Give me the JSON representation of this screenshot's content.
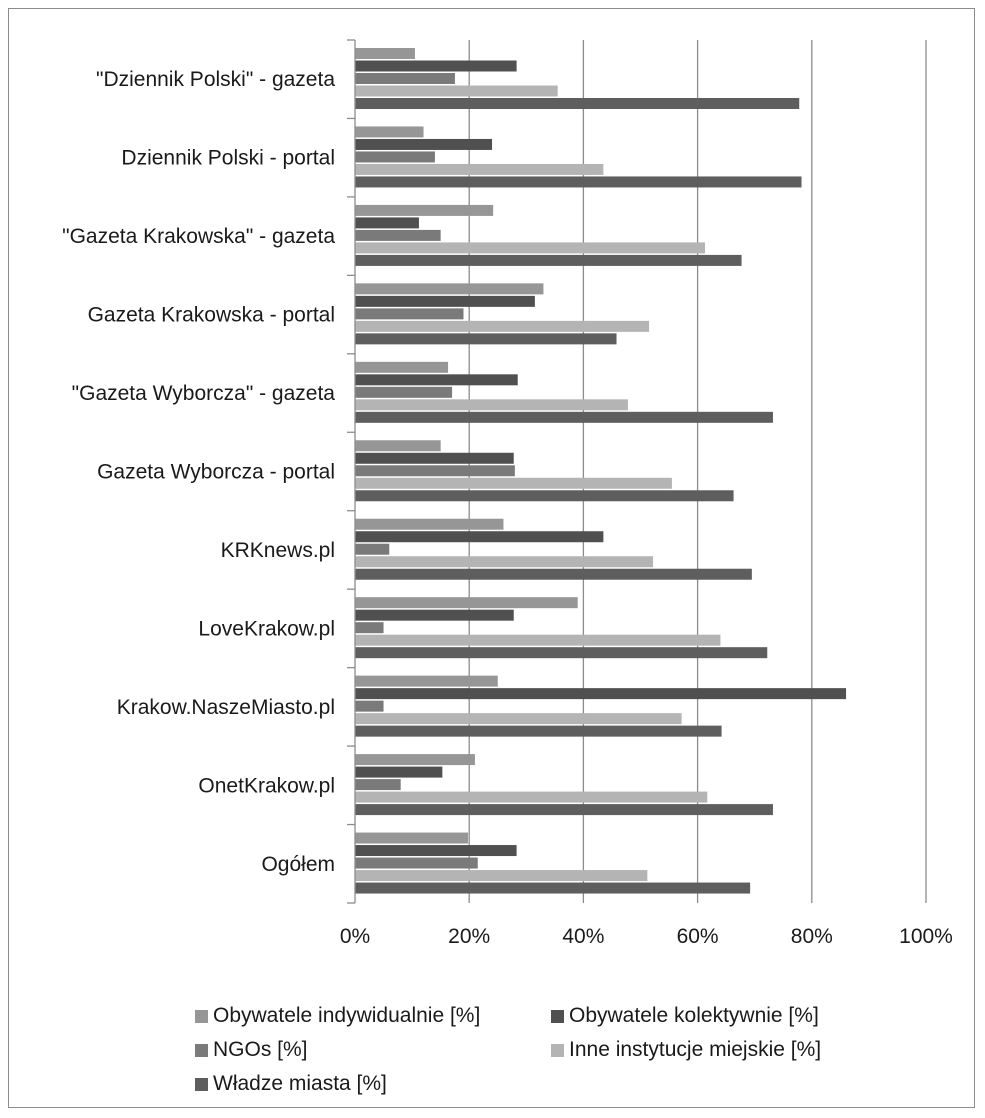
{
  "chart_data": {
    "type": "bar",
    "orientation": "horizontal",
    "title": "",
    "xlabel": "",
    "ylabel": "",
    "xlim": [
      0,
      1
    ],
    "x_ticks": [
      "0%",
      "20%",
      "40%",
      "60%",
      "80%",
      "100%"
    ],
    "grid": true,
    "legend_position": "bottom",
    "categories": [
      "\"Dziennik Polski\" - gazeta",
      "Dziennik Polski - portal",
      "\"Gazeta Krakowska\" - gazeta",
      "Gazeta Krakowska - portal",
      "\"Gazeta Wyborcza\" - gazeta",
      "Gazeta Wyborcza - portal",
      "KRKnews.pl",
      "LoveKrakow.pl",
      "Krakow.NaszeMiasto.pl",
      "OnetKrakow.pl",
      "Ogółem"
    ],
    "series": [
      {
        "name": "Obywatele indywidualnie [%]",
        "color": "#969696",
        "values": [
          0.105,
          0.12,
          0.242,
          0.33,
          0.163,
          0.15,
          0.26,
          0.39,
          0.25,
          0.21,
          0.198
        ]
      },
      {
        "name": "Obywatele kolektywnie [%]",
        "color": "#505050",
        "values": [
          0.283,
          0.24,
          0.112,
          0.315,
          0.285,
          0.278,
          0.435,
          0.278,
          0.86,
          0.153,
          0.283
        ]
      },
      {
        "name": "NGOs [%]",
        "color": "#7a7a7a",
        "values": [
          0.175,
          0.14,
          0.15,
          0.19,
          0.17,
          0.28,
          0.06,
          0.05,
          0.05,
          0.08,
          0.215
        ]
      },
      {
        "name": "Inne instytucje miejskie [%]",
        "color": "#b4b4b4",
        "values": [
          0.355,
          0.435,
          0.613,
          0.515,
          0.478,
          0.555,
          0.522,
          0.64,
          0.572,
          0.617,
          0.512
        ]
      },
      {
        "name": "Władze miasta [%]",
        "color": "#5e5e5e",
        "values": [
          0.778,
          0.782,
          0.677,
          0.458,
          0.732,
          0.663,
          0.695,
          0.722,
          0.642,
          0.732,
          0.692
        ]
      }
    ]
  }
}
